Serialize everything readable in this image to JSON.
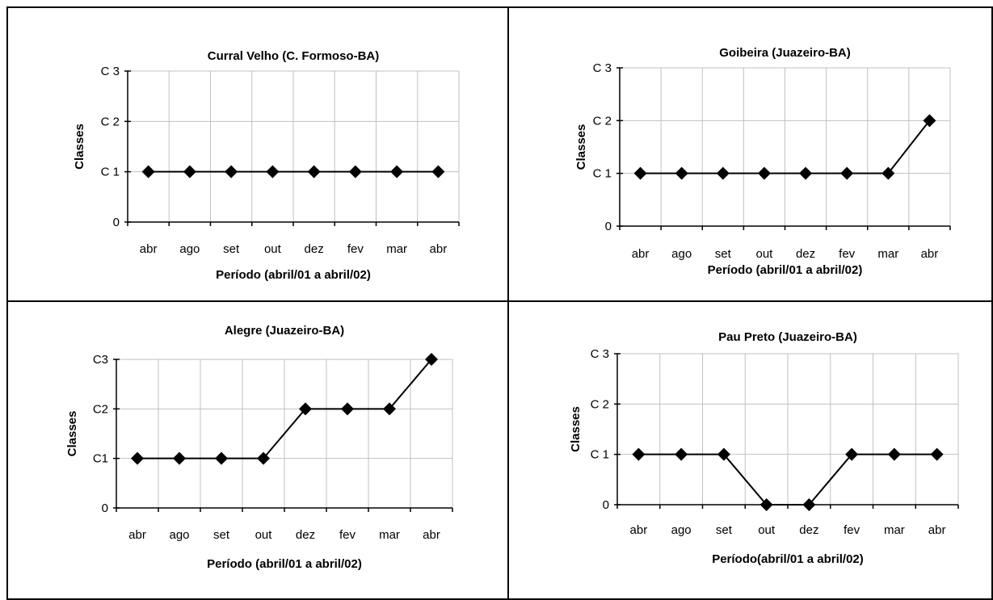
{
  "chart_data": [
    {
      "type": "line",
      "title": "Curral Velho (C. Formoso-BA)",
      "xlabel": "Período (abril/01 a abril/02)",
      "ylabel": "Classes",
      "categories": [
        "abr",
        "ago",
        "set",
        "out",
        "dez",
        "fev",
        "mar",
        "abr"
      ],
      "y_ticks": [
        "0",
        "C 1",
        "C 2",
        "C 3"
      ],
      "ylim": [
        0,
        3
      ],
      "grid": true,
      "series": [
        {
          "values": [
            1,
            1,
            1,
            1,
            1,
            1,
            1,
            1
          ]
        }
      ]
    },
    {
      "type": "line",
      "title": "Goibeira (Juazeiro-BA)",
      "xlabel": "Período (abril/01 a abril/02)",
      "ylabel": "Classes",
      "categories": [
        "abr",
        "ago",
        "set",
        "out",
        "dez",
        "fev",
        "mar",
        "abr"
      ],
      "y_ticks": [
        "0",
        "C 1",
        "C 2",
        "C 3"
      ],
      "ylim": [
        0,
        3
      ],
      "grid": true,
      "series": [
        {
          "values": [
            1,
            1,
            1,
            1,
            1,
            1,
            1,
            2
          ]
        }
      ]
    },
    {
      "type": "line",
      "title": "Alegre (Juazeiro-BA)",
      "xlabel": "Período (abril/01 a abril/02)",
      "ylabel": "Classes",
      "categories": [
        "abr",
        "ago",
        "set",
        "out",
        "dez",
        "fev",
        "mar",
        "abr"
      ],
      "y_ticks": [
        "0",
        "C1",
        "C2",
        "C3"
      ],
      "ylim": [
        0,
        3
      ],
      "grid": true,
      "series": [
        {
          "values": [
            1,
            1,
            1,
            1,
            2,
            2,
            2,
            3
          ]
        }
      ]
    },
    {
      "type": "line",
      "title": "Pau Preto (Juazeiro-BA)",
      "xlabel": "Período(abril/01 a abril/02)",
      "ylabel": "Classes",
      "categories": [
        "abr",
        "ago",
        "set",
        "out",
        "dez",
        "fev",
        "mar",
        "abr"
      ],
      "y_ticks": [
        "0",
        "C 1",
        "C 2",
        "C 3"
      ],
      "ylim": [
        0,
        3
      ],
      "grid": true,
      "series": [
        {
          "values": [
            1,
            1,
            1,
            0,
            0,
            1,
            1,
            1
          ]
        }
      ]
    }
  ]
}
